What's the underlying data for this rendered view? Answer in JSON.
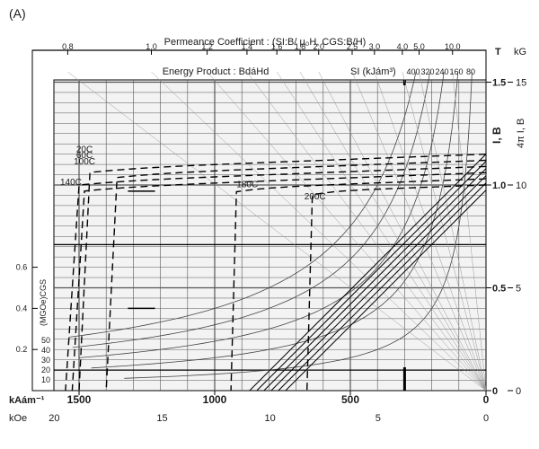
{
  "panel_label": "(A)",
  "chart_data": {
    "type": "line",
    "title": "",
    "x_axis": {
      "label_si": "kAám⁻¹",
      "label_cgs": "kOe",
      "si_range": [
        1600,
        0
      ],
      "cgs_range": [
        20,
        0
      ],
      "si_ticks": [
        1500,
        1000,
        500,
        0
      ],
      "cgs_ticks": [
        20,
        15,
        10,
        5,
        0
      ]
    },
    "y_axis_right": {
      "label": "I, B",
      "label_cgs": "4π I, B",
      "unit_si": "T",
      "unit_cgs": "kG",
      "range_T": [
        0,
        1.55
      ],
      "ticks_T": [
        0,
        0.5,
        1.0,
        1.5
      ],
      "tick_labels_T": [
        "0",
        "0.5",
        "1.0",
        "1.5"
      ],
      "ticks_kG": [
        0,
        5,
        10,
        15
      ],
      "tick_labels_kG": [
        "0",
        "5",
        "10",
        "15"
      ]
    },
    "y_axis_left": {
      "tick_labels": [
        "0.2",
        "0.4",
        "0.6"
      ],
      "tick_T": [
        0.2,
        0.4,
        0.6
      ]
    },
    "permeance_axis": {
      "label": "Permeance Coefficient : (SI:B/ μ₀H, CGS:B/H)",
      "ticks": [
        0.8,
        1.0,
        1.2,
        1.4,
        1.6,
        1.8,
        2.0,
        2.5,
        3.0,
        4.0,
        5.0,
        10.0
      ]
    },
    "energy_product": {
      "label": "Energy Product : BdáHd",
      "si_label": "SI (kJám³)",
      "si_values": [
        "400",
        "320",
        "240",
        "160",
        "80"
      ],
      "cgs_label": "(MGOe)CGS",
      "cgs_values": [
        "50",
        "40",
        "30",
        "20",
        "10"
      ]
    },
    "series": [
      {
        "name": "20C",
        "style": "dashed",
        "Br": 1.15,
        "Hc": 1500
      },
      {
        "name": "60C",
        "style": "dashed",
        "Br": 1.12,
        "Hc": 1400
      },
      {
        "name": "100C",
        "style": "dashed",
        "Br": 1.09,
        "Hc": 1550
      },
      {
        "name": "140C",
        "style": "dashed",
        "Br": 1.06,
        "Hc": 1525,
        "label_H": 1530,
        "label_B": 1.0
      },
      {
        "name": "180C",
        "style": "dashed",
        "Br": 1.03,
        "Hc": 940,
        "label_H": 880,
        "label_B": 0.99
      },
      {
        "name": "200C",
        "style": "dashed",
        "Br": 1.0,
        "Hc": 660,
        "label_H": 630,
        "label_B": 0.93
      }
    ],
    "grid": true,
    "legend": "none"
  }
}
